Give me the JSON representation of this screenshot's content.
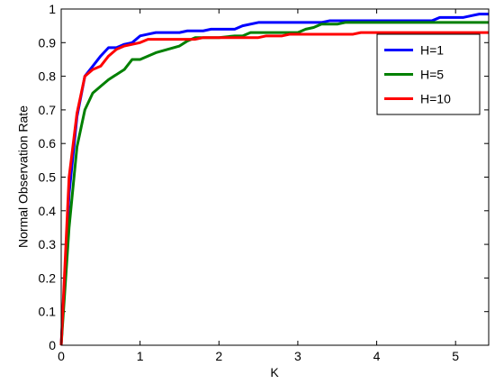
{
  "chart_data": {
    "type": "line",
    "x_label": "K",
    "y_label": "Normal Observation Rate",
    "xlim": [
      0,
      5.42
    ],
    "ylim": [
      0,
      1
    ],
    "xticks": [
      0,
      1,
      2,
      3,
      4,
      5
    ],
    "yticks": [
      0,
      0.1,
      0.2,
      0.3,
      0.4,
      0.5,
      0.6,
      0.7,
      0.8,
      0.9,
      1
    ],
    "legend": "upper right",
    "series": [
      {
        "name": "H=1",
        "color": "#0000ff",
        "x": [
          0,
          0.1,
          0.2,
          0.3,
          0.4,
          0.5,
          0.6,
          0.7,
          0.8,
          0.9,
          1.0,
          1.1,
          1.2,
          1.5,
          1.6,
          1.8,
          1.9,
          2.2,
          2.3,
          2.5,
          3.3,
          3.4,
          4.7,
          4.8,
          5.1,
          5.2,
          5.3,
          5.42
        ],
        "values": [
          0,
          0.45,
          0.68,
          0.8,
          0.83,
          0.86,
          0.885,
          0.885,
          0.895,
          0.9,
          0.92,
          0.925,
          0.93,
          0.93,
          0.935,
          0.935,
          0.94,
          0.94,
          0.95,
          0.96,
          0.96,
          0.965,
          0.965,
          0.975,
          0.975,
          0.98,
          0.985,
          0.985
        ]
      },
      {
        "name": "H=5",
        "color": "#008000",
        "x": [
          0,
          0.1,
          0.2,
          0.3,
          0.4,
          0.5,
          0.6,
          0.7,
          0.8,
          0.9,
          1.0,
          1.1,
          1.2,
          1.5,
          1.6,
          1.7,
          2.0,
          2.2,
          2.3,
          2.4,
          3.0,
          3.1,
          3.2,
          3.3,
          3.5,
          3.6,
          5.42
        ],
        "values": [
          0,
          0.35,
          0.59,
          0.7,
          0.75,
          0.77,
          0.79,
          0.805,
          0.82,
          0.85,
          0.85,
          0.86,
          0.87,
          0.89,
          0.905,
          0.915,
          0.915,
          0.92,
          0.92,
          0.93,
          0.93,
          0.94,
          0.945,
          0.955,
          0.955,
          0.96,
          0.96
        ]
      },
      {
        "name": "H=10",
        "color": "#ff0000",
        "x": [
          0,
          0.1,
          0.2,
          0.3,
          0.4,
          0.5,
          0.6,
          0.7,
          0.8,
          0.9,
          1.0,
          1.1,
          1.7,
          1.8,
          2.5,
          2.6,
          2.8,
          2.9,
          3.7,
          3.8,
          5.42
        ],
        "values": [
          0,
          0.5,
          0.69,
          0.8,
          0.82,
          0.83,
          0.86,
          0.88,
          0.89,
          0.895,
          0.9,
          0.91,
          0.91,
          0.915,
          0.915,
          0.92,
          0.92,
          0.925,
          0.925,
          0.93,
          0.93
        ]
      }
    ]
  }
}
